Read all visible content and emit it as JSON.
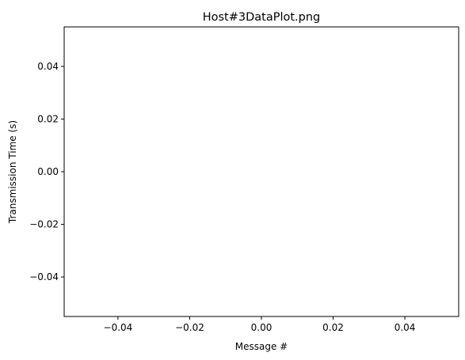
{
  "chart_data": {
    "type": "line",
    "title": "Host#3DataPlot.png",
    "xlabel": "Message #",
    "ylabel": "Transmission Time (s)",
    "x": [],
    "y": [],
    "xlim": [
      -0.055,
      0.055
    ],
    "ylim": [
      -0.055,
      0.055
    ],
    "xticks": [
      -0.04,
      -0.02,
      0.0,
      0.02,
      0.04
    ],
    "yticks": [
      -0.04,
      -0.02,
      0.0,
      0.02,
      0.04
    ],
    "xtick_labels": [
      "−0.04",
      "−0.02",
      "0.00",
      "0.02",
      "0.04"
    ],
    "ytick_labels": [
      "−0.04",
      "−0.02",
      "0.00",
      "0.02",
      "0.04"
    ],
    "grid": false,
    "legend": null
  }
}
